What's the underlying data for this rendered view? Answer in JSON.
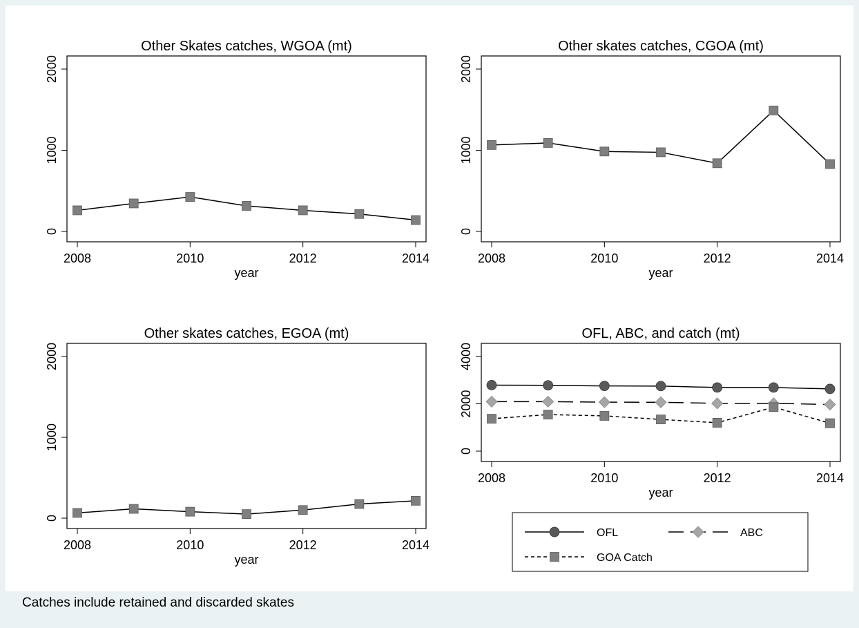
{
  "chart_data": [
    {
      "type": "line",
      "title": "Other Skates catches, WGOA (mt)",
      "xlabel": "year",
      "ylabel": "",
      "xlim": [
        2008,
        2014
      ],
      "ylim": [
        0,
        2000
      ],
      "xticks": [
        "2008",
        "2010",
        "2012",
        "2014"
      ],
      "yticks": [
        "0",
        "1000",
        "2000"
      ],
      "x": [
        2008,
        2009,
        2010,
        2011,
        2012,
        2013,
        2014
      ],
      "series": [
        {
          "values": [
            260,
            345,
            425,
            315,
            260,
            215,
            140
          ],
          "color": "#000000",
          "dash": "solid",
          "marker": "square",
          "marker_color": "#7f7f7f"
        }
      ]
    },
    {
      "type": "line",
      "title": "Other skates catches, CGOA (mt)",
      "xlabel": "year",
      "ylabel": "",
      "xlim": [
        2008,
        2014
      ],
      "ylim": [
        0,
        2000
      ],
      "xticks": [
        "2008",
        "2010",
        "2012",
        "2014"
      ],
      "yticks": [
        "0",
        "1000",
        "2000"
      ],
      "x": [
        2008,
        2009,
        2010,
        2011,
        2012,
        2013,
        2014
      ],
      "series": [
        {
          "values": [
            1065,
            1090,
            985,
            975,
            840,
            1490,
            830
          ],
          "color": "#000000",
          "dash": "solid",
          "marker": "square",
          "marker_color": "#7f7f7f"
        }
      ]
    },
    {
      "type": "line",
      "title": "Other skates catches, EGOA (mt)",
      "xlabel": "year",
      "ylabel": "",
      "xlim": [
        2008,
        2014
      ],
      "ylim": [
        0,
        2000
      ],
      "xticks": [
        "2008",
        "2010",
        "2012",
        "2014"
      ],
      "yticks": [
        "0",
        "1000",
        "2000"
      ],
      "x": [
        2008,
        2009,
        2010,
        2011,
        2012,
        2013,
        2014
      ],
      "series": [
        {
          "values": [
            65,
            115,
            80,
            50,
            100,
            175,
            215
          ],
          "color": "#000000",
          "dash": "solid",
          "marker": "square",
          "marker_color": "#7f7f7f"
        }
      ]
    },
    {
      "type": "line",
      "title": "OFL, ABC, and catch (mt)",
      "xlabel": "year",
      "ylabel": "",
      "xlim": [
        2008,
        2014
      ],
      "ylim": [
        0,
        4000
      ],
      "xticks": [
        "2008",
        "2010",
        "2012",
        "2014"
      ],
      "yticks": [
        "0",
        "2000",
        "4000"
      ],
      "legend": "below",
      "x": [
        2008,
        2009,
        2010,
        2011,
        2012,
        2013,
        2014
      ],
      "series": [
        {
          "name": "OFL",
          "values": [
            2790,
            2780,
            2755,
            2750,
            2690,
            2690,
            2630
          ],
          "color": "#000000",
          "dash": "solid",
          "marker": "circle",
          "marker_color": "#595959"
        },
        {
          "name": "ABC",
          "values": [
            2090,
            2090,
            2070,
            2065,
            2020,
            2020,
            1970
          ],
          "color": "#000000",
          "dash": "longdash",
          "marker": "diamond",
          "marker_color": "#a6a6a6"
        },
        {
          "name": "GOA Catch",
          "values": [
            1370,
            1545,
            1490,
            1340,
            1200,
            1860,
            1180
          ],
          "color": "#000000",
          "dash": "shortdash",
          "marker": "square",
          "marker_color": "#7f7f7f"
        }
      ]
    }
  ],
  "note": "Catches include retained and discarded skates"
}
